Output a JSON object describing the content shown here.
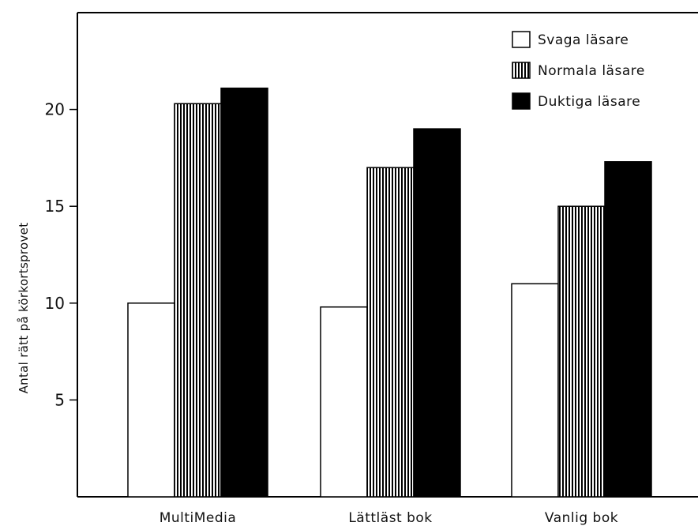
{
  "chart_data": {
    "type": "bar",
    "ylabel": "Antal rätt på körkortsprovet",
    "xlabel": "",
    "categories": [
      "MultiMedia",
      "Lättläst bok",
      "Vanlig bok"
    ],
    "series": [
      {
        "name": "Svaga läsare",
        "values": [
          10.0,
          9.8,
          11.0
        ],
        "pattern": "white"
      },
      {
        "name": "Normala läsare",
        "values": [
          20.3,
          17.0,
          15.0
        ],
        "pattern": "vertical-stripes"
      },
      {
        "name": "Duktiga läsare",
        "values": [
          21.1,
          19.0,
          17.3
        ],
        "pattern": "black"
      }
    ],
    "ylim": [
      0,
      25
    ],
    "yticks": [
      5,
      10,
      15,
      20
    ],
    "grid": false,
    "legend_position": "top-right",
    "colors": {
      "fill_dark": "#000000",
      "fill_light": "#ffffff",
      "stroke": "#000000"
    }
  }
}
